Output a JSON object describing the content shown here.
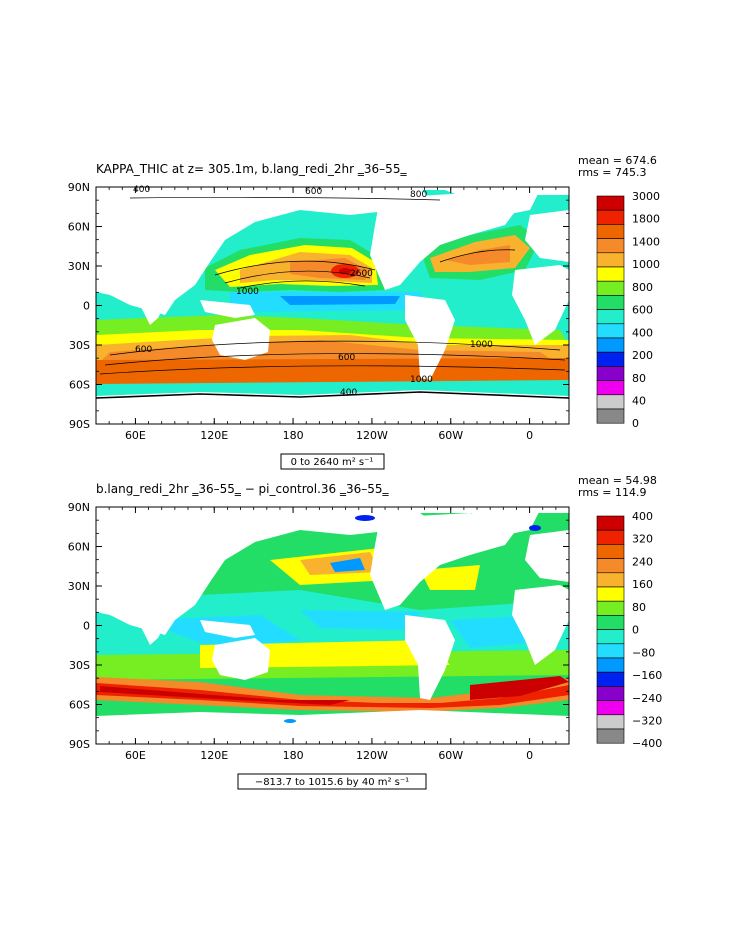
{
  "chart_data": [
    {
      "type": "heatmap",
      "title": "KAPPA_THIC at z= 305.1m, b.lang_redi_2hr ‗36–55‗",
      "stats": {
        "mean": "mean = 674.6",
        "rms": "rms = 745.3"
      },
      "range_label": "0 to 2640 m² s⁻¹",
      "xticks": [
        "60E",
        "120E",
        "180",
        "120W",
        "60W",
        "0"
      ],
      "yticks": [
        "90N",
        "60N",
        "30N",
        "0",
        "30S",
        "60S",
        "90S"
      ],
      "legend_levels": [
        "3000",
        "1800",
        "1400",
        "1000",
        "800",
        "600",
        "400",
        "200",
        "80",
        "40",
        "0"
      ],
      "legend_colors": [
        "#cc0000",
        "#ee2200",
        "#ee6600",
        "#f58a2a",
        "#f9b22e",
        "#ffff00",
        "#77ee22",
        "#22dd66",
        "#22eecc",
        "#22ddff",
        "#0099ff",
        "#0022ee",
        "#8800cc",
        "#ee00ee",
        "#cccccc",
        "#888888"
      ],
      "contour_labels": [
        "400",
        "600",
        "800",
        "1000",
        "2600"
      ],
      "ylim": [
        -90,
        90
      ],
      "xlim": [
        30,
        390
      ]
    },
    {
      "type": "heatmap",
      "title": "b.lang_redi_2hr ‗36–55‗ − pi_control.36 ‗36–55‗",
      "stats": {
        "mean": "mean = 54.98",
        "rms": "rms = 114.9"
      },
      "range_label": "−813.7 to 1015.6 by 40 m² s⁻¹",
      "xticks": [
        "60E",
        "120E",
        "180",
        "120W",
        "60W",
        "0"
      ],
      "yticks": [
        "90N",
        "60N",
        "30N",
        "0",
        "30S",
        "60S",
        "90S"
      ],
      "legend_levels": [
        "400",
        "320",
        "240",
        "160",
        "80",
        "0",
        "−80",
        "−160",
        "−240",
        "−320",
        "−400"
      ],
      "legend_colors": [
        "#cc0000",
        "#ee2200",
        "#ee6600",
        "#f58a2a",
        "#f9b22e",
        "#ffff00",
        "#77ee22",
        "#22dd66",
        "#22eecc",
        "#22ddff",
        "#0099ff",
        "#0022ee",
        "#8800cc",
        "#ee00ee",
        "#cccccc",
        "#888888"
      ],
      "ylim": [
        -90,
        90
      ],
      "xlim": [
        30,
        390
      ]
    }
  ]
}
